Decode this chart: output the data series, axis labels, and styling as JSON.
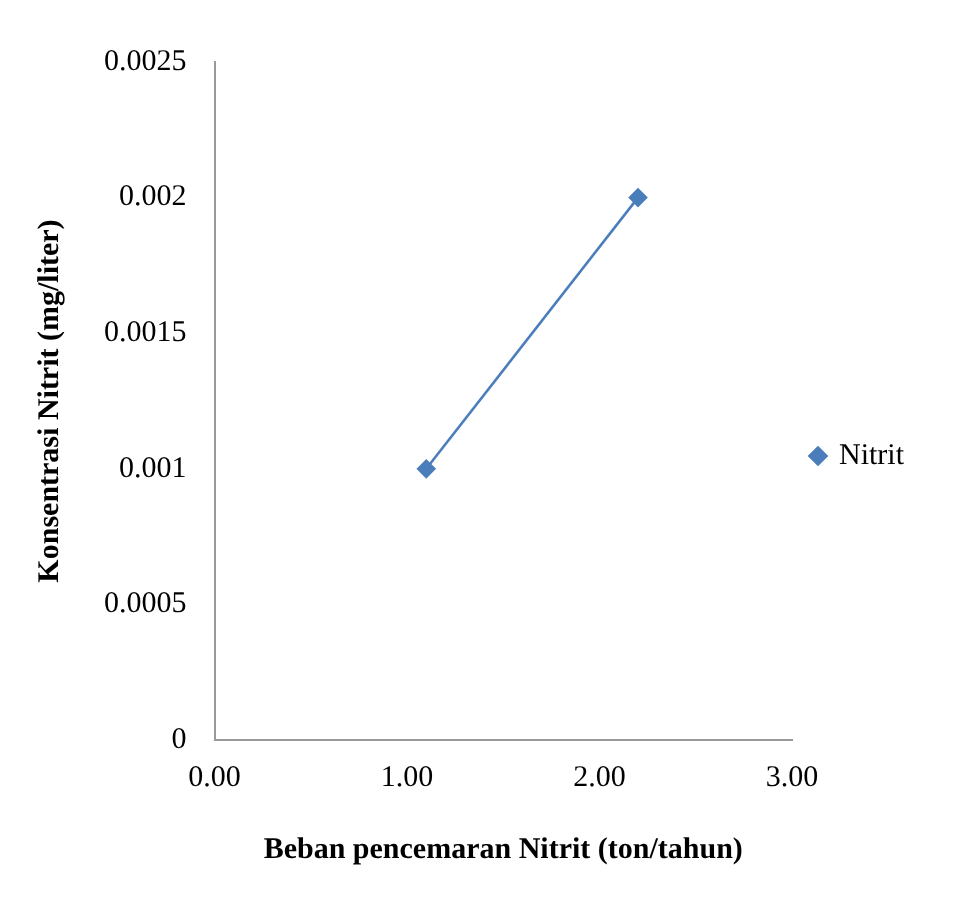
{
  "chart_data": {
    "type": "line",
    "xlabel": "Beban pencemaran Nitrit (ton/tahun)",
    "ylabel": "Konsentrasi Nitrit (mg/liter)",
    "x": [
      1.1,
      2.2
    ],
    "series": [
      {
        "name": "Nitrit",
        "color": "#4a7ebb",
        "values": [
          0.001,
          0.002
        ]
      }
    ],
    "xlim": [
      0,
      3
    ],
    "xticks": [
      {
        "value": 0,
        "label": "0.00"
      },
      {
        "value": 1,
        "label": "1.00"
      },
      {
        "value": 2,
        "label": "2.00"
      },
      {
        "value": 3,
        "label": "3.00"
      }
    ],
    "ylim": [
      0,
      0.0025
    ],
    "yticks": [
      0,
      0.0005,
      0.001,
      0.0015,
      0.002,
      0.0025
    ],
    "grid": false,
    "legend": "right",
    "marker": "diamond",
    "line_style": "solid"
  }
}
